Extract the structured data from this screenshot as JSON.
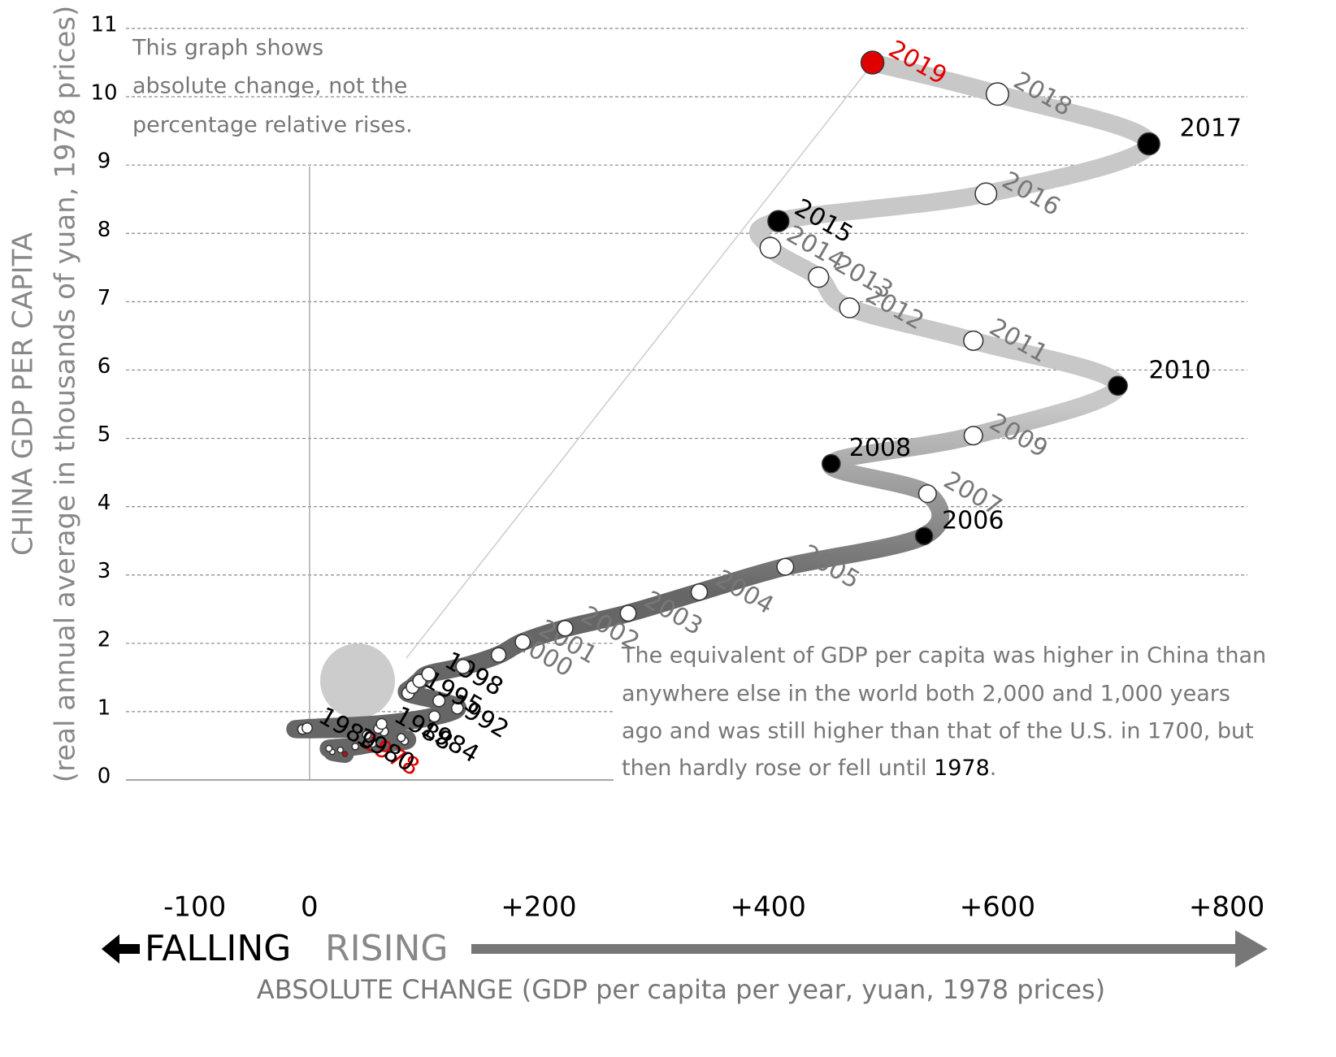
{
  "chart_data": {
    "type": "connected_scatter",
    "y_title": "CHINA GDP PER CAPITA",
    "y_subtitle": "(real annual average in thousands of yuan, 1978 prices)",
    "x_title": "ABSOLUTE CHANGE (GDP per capita per year, yuan, 1978 prices)",
    "falling_label": "FALLING",
    "rising_label": "RISING",
    "top_note": [
      "This graph shows",
      "absolute change, not the",
      "percentage relative rises."
    ],
    "bottom_note": {
      "lines": [
        "The equivalent of GDP per capita was higher in China than",
        "anywhere else in the world both 2,000 and 1,000 years",
        "ago and was still higher than that of the U.S. in 1700, but"
      ],
      "last": [
        "then hardly rose or fell until ",
        "1978",
        "."
      ]
    },
    "labels": [
      "1978",
      null,
      "1980",
      null,
      null,
      null,
      "1984",
      null,
      null,
      null,
      "1988",
      "1989",
      null,
      null,
      "1992",
      null,
      null,
      "1995",
      null,
      null,
      "1998",
      null,
      "2000",
      "2001",
      "2002",
      "2003",
      "2004",
      "2005",
      "2006",
      "2007",
      "2008",
      "2009",
      "2010",
      "2011",
      "2012",
      "2013",
      "2014",
      "2015",
      "2016",
      "2017",
      "2018",
      "2019"
    ],
    "x": [
      31,
      20,
      27,
      17,
      40,
      55,
      83,
      80,
      50,
      65,
      60,
      -6,
      -2,
      63,
      109,
      129,
      113,
      86,
      90,
      96,
      104,
      134,
      165,
      186,
      223,
      278,
      340,
      415,
      536,
      539,
      455,
      579,
      705,
      579,
      471,
      444,
      402,
      409,
      590,
      732,
      600,
      491
    ],
    "y": [
      0.38,
      0.41,
      0.44,
      0.46,
      0.49,
      0.53,
      0.57,
      0.62,
      0.66,
      0.71,
      0.75,
      0.74,
      0.76,
      0.82,
      0.93,
      1.05,
      1.16,
      1.27,
      1.36,
      1.45,
      1.55,
      1.66,
      1.83,
      2.02,
      2.22,
      2.44,
      2.75,
      3.12,
      3.57,
      4.19,
      4.63,
      5.04,
      5.77,
      6.43,
      6.91,
      7.36,
      7.79,
      8.18,
      8.58,
      9.31,
      10.04,
      10.5
    ],
    "marker_colors": [
      "#e00000",
      "#fff",
      "#fff",
      "#fff",
      "#fff",
      "#fff",
      "#fff",
      "#fff",
      "#fff",
      "#fff",
      "#fff",
      "#fff",
      "#fff",
      "#fff",
      "#fff",
      "#fff",
      "#fff",
      "#fff",
      "#fff",
      "#fff",
      "#fff",
      "#fff",
      "#fff",
      "#fff",
      "#fff",
      "#fff",
      "#fff",
      "#fff",
      "#000",
      "#fff",
      "#000",
      "#fff",
      "#000",
      "#fff",
      "#fff",
      "#fff",
      "#fff",
      "#000",
      "#fff",
      "#000",
      "#fff",
      "#e00000"
    ],
    "label_colors": [
      "#e00000",
      null,
      "#000",
      null,
      null,
      null,
      "#000",
      null,
      null,
      null,
      "#000",
      "#000",
      null,
      null,
      "#000",
      null,
      null,
      "#000",
      null,
      null,
      "#000",
      null,
      "#777",
      "#777",
      "#777",
      "#777",
      "#777",
      "#777",
      "#000",
      "#777",
      "#000",
      "#777",
      "#000",
      "#777",
      "#777",
      "#777",
      "#777",
      "#000",
      "#777",
      "#000",
      "#777",
      "#e00000"
    ],
    "line_colors": [
      "#666666",
      "#c8c8c8"
    ],
    "xlim": [
      -160,
      818
    ],
    "ylim": [
      0,
      11
    ],
    "xticks": [
      {
        "value": -100,
        "label": "-100"
      },
      0,
      {
        "value": 200,
        "label": "+200"
      },
      {
        "value": 400,
        "label": "+400"
      },
      {
        "value": 600,
        "label": "+600"
      },
      {
        "value": 800,
        "label": "+800"
      }
    ],
    "yticks": [
      0,
      1,
      2,
      3,
      4,
      5,
      6,
      7,
      8,
      9,
      10,
      11
    ],
    "grid": true
  }
}
